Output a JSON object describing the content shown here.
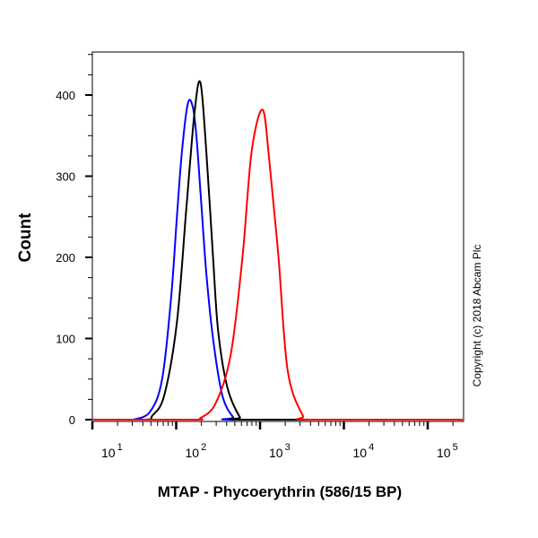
{
  "chart_data": {
    "type": "line",
    "title": "",
    "xlabel": "MTAP - Phycoerythrin (586/15 BP)",
    "ylabel": "Count",
    "xscale": "log",
    "xlim": [
      10,
      270000
    ],
    "ylim": [
      0,
      455
    ],
    "grid": false,
    "legend": "none",
    "x_ticks": [
      {
        "base": "10",
        "exp": "1",
        "value": 10
      },
      {
        "base": "10",
        "exp": "2",
        "value": 100
      },
      {
        "base": "10",
        "exp": "3",
        "value": 1000
      },
      {
        "base": "10",
        "exp": "4",
        "value": 10000
      },
      {
        "base": "10",
        "exp": "5",
        "value": 100000
      }
    ],
    "y_ticks": [
      "0",
      "100",
      "200",
      "300",
      "400"
    ],
    "y_tick_values": [
      0,
      100,
      200,
      300,
      400
    ],
    "series": [
      {
        "color": "#0000ff",
        "x": [
          31,
          49,
          68,
          87,
          102,
          117,
          138,
          158,
          174,
          195,
          229,
          275,
          355,
          479
        ],
        "y": [
          0,
          10,
          50,
          150,
          250,
          330,
          390,
          385,
          350,
          280,
          180,
          100,
          30,
          3
        ]
      },
      {
        "color": "#000000",
        "x": [
          52,
          72,
          102,
          132,
          166,
          195,
          229,
          275,
          316,
          407,
          575
        ],
        "y": [
          5,
          30,
          120,
          260,
          380,
          415,
          330,
          200,
          110,
          40,
          3
        ]
      },
      {
        "color": "#ff0000",
        "x": [
          195,
          295,
          447,
          617,
          794,
          1072,
          1288,
          1660,
          2138,
          3236
        ],
        "y": [
          2,
          20,
          80,
          200,
          330,
          382,
          320,
          200,
          60,
          5
        ]
      }
    ],
    "annotation": "Copyright (c) 2018 Abcam Plc"
  }
}
